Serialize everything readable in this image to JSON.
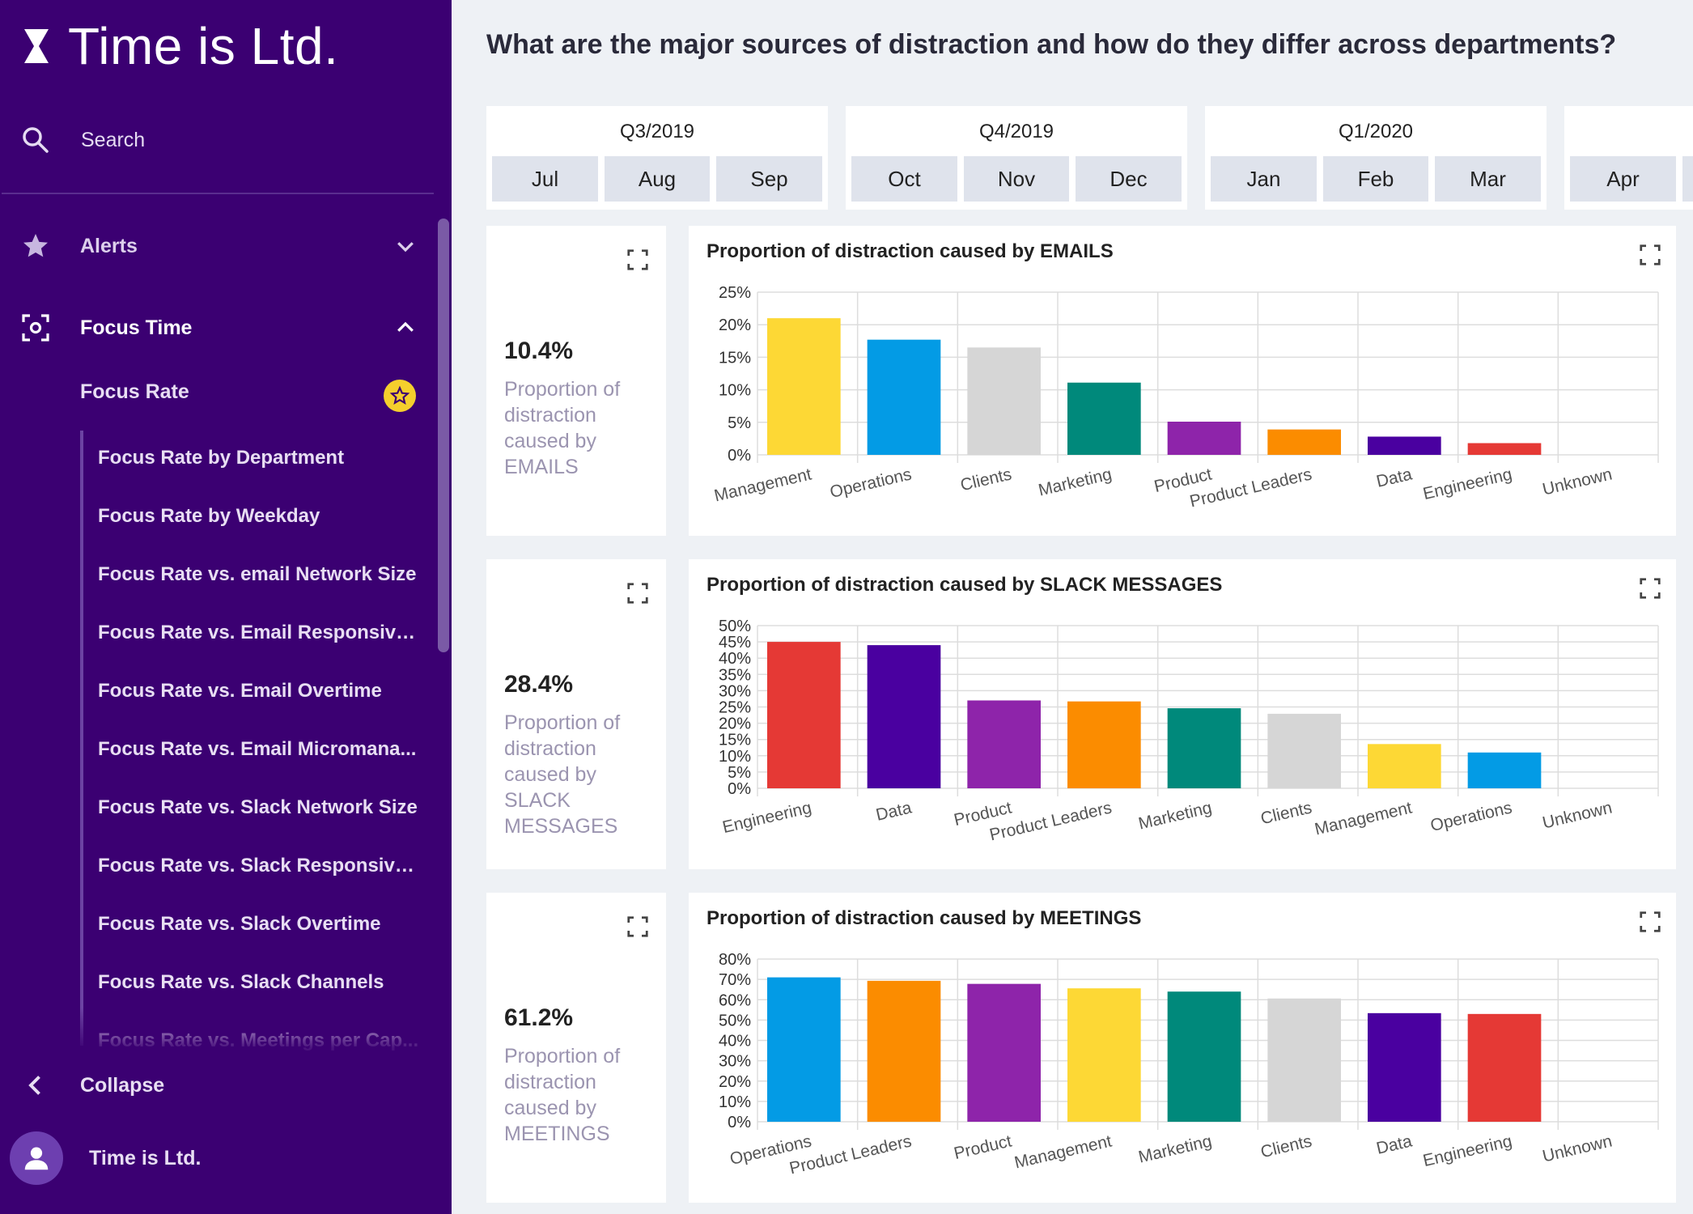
{
  "brand": {
    "name": "Time is Ltd."
  },
  "sidebar": {
    "search_label": "Search",
    "alerts_label": "Alerts",
    "focus_time_label": "Focus Time",
    "focus_rate_label": "Focus Rate",
    "sub_items": [
      "Focus Rate by Department",
      "Focus Rate by Weekday",
      "Focus Rate vs. email Network Size",
      "Focus Rate vs. Email Responsive...",
      "Focus Rate vs. Email Overtime",
      "Focus Rate vs. Email Micromana...",
      "Focus Rate vs. Slack Network Size",
      "Focus Rate vs. Slack Responsive...",
      "Focus Rate vs. Slack Overtime",
      "Focus Rate vs. Slack Channels",
      "Focus Rate vs. Meetings per Cap..."
    ],
    "collapse_label": "Collapse",
    "user_label": "Time is Ltd."
  },
  "page": {
    "title": "What are the major sources of distraction and how do they differ across departments?"
  },
  "timeline": [
    {
      "quarter": "Q3/2019",
      "months": [
        "Jul",
        "Aug",
        "Sep"
      ]
    },
    {
      "quarter": "Q4/2019",
      "months": [
        "Oct",
        "Nov",
        "Dec"
      ]
    },
    {
      "quarter": "Q1/2020",
      "months": [
        "Jan",
        "Feb",
        "Mar"
      ]
    },
    {
      "quarter": "",
      "months": [
        "Apr"
      ]
    }
  ],
  "kpis": [
    {
      "value": "10.4%",
      "description": "Proportion of distraction caused by EMAILS"
    },
    {
      "value": "28.4%",
      "description": "Proportion of distraction caused by SLACK MESSAGES"
    },
    {
      "value": "61.2%",
      "description": "Proportion of distraction caused by MEETINGS"
    }
  ],
  "chart_data": [
    {
      "type": "bar",
      "title": "Proportion of distraction caused by EMAILS",
      "categories": [
        "Management",
        "Operations",
        "Clients",
        "Marketing",
        "Product",
        "Product Leaders",
        "Data",
        "Engineering",
        "Unknown"
      ],
      "values": [
        21,
        17.7,
        16.5,
        11.1,
        5.1,
        3.9,
        2.8,
        1.8,
        0
      ],
      "colors": [
        "#fdd835",
        "#039be5",
        "#d6d6d6",
        "#00897b",
        "#8e24aa",
        "#fb8c00",
        "#4a00a0",
        "#e53935",
        "#cccccc"
      ],
      "yticks": [
        "0%",
        "5%",
        "10%",
        "15%",
        "20%",
        "25%"
      ],
      "ylim": [
        0,
        25
      ],
      "ystep": 5
    },
    {
      "type": "bar",
      "title": "Proportion of distraction caused by SLACK MESSAGES",
      "categories": [
        "Engineering",
        "Data",
        "Product",
        "Product Leaders",
        "Marketing",
        "Clients",
        "Management",
        "Operations",
        "Unknown"
      ],
      "values": [
        45,
        44,
        27,
        26.7,
        24.6,
        22.9,
        13.6,
        11,
        0
      ],
      "colors": [
        "#e53935",
        "#4a00a0",
        "#8e24aa",
        "#fb8c00",
        "#00897b",
        "#d6d6d6",
        "#fdd835",
        "#039be5",
        "#cccccc"
      ],
      "yticks": [
        "0%",
        "5%",
        "10%",
        "15%",
        "20%",
        "25%",
        "30%",
        "35%",
        "40%",
        "45%",
        "50%"
      ],
      "ylim": [
        0,
        50
      ],
      "ystep": 5
    },
    {
      "type": "bar",
      "title": "Proportion of distraction caused by MEETINGS",
      "categories": [
        "Operations",
        "Product Leaders",
        "Product",
        "Management",
        "Marketing",
        "Clients",
        "Data",
        "Engineering",
        "Unknown"
      ],
      "values": [
        71,
        69.3,
        67.8,
        65.6,
        64,
        60.6,
        53.4,
        53,
        0
      ],
      "colors": [
        "#039be5",
        "#fb8c00",
        "#8e24aa",
        "#fdd835",
        "#00897b",
        "#d6d6d6",
        "#4a00a0",
        "#e53935",
        "#cccccc"
      ],
      "yticks": [
        "0%",
        "10%",
        "20%",
        "30%",
        "40%",
        "50%",
        "60%",
        "70%",
        "80%"
      ],
      "ylim": [
        0,
        80
      ],
      "ystep": 10
    }
  ]
}
